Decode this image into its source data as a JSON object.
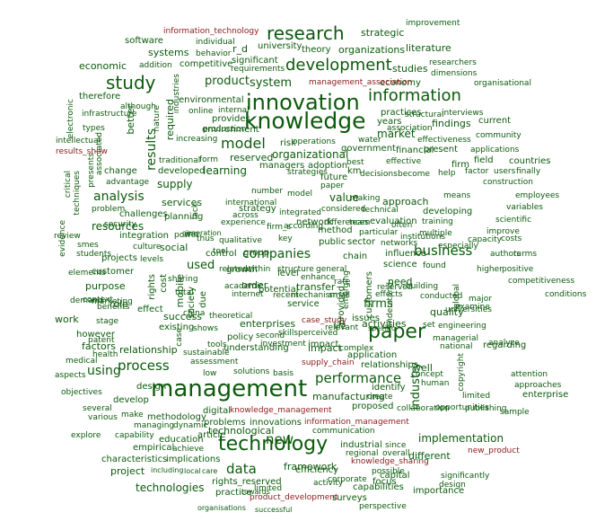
{
  "colors": {
    "common": "#0c5a0c",
    "highlight": "#8b1a1a",
    "background": "#ffffff"
  },
  "words": [
    "management",
    "knowledge",
    "innovation",
    "technology",
    "research",
    "paper",
    "development",
    "information",
    "study",
    "model",
    "process",
    "business",
    "performance",
    "data",
    "new",
    "analysis",
    "companies",
    "system",
    "product",
    "firms",
    "industry",
    "results",
    "organizations",
    "strategic",
    "literature",
    "software",
    "economic",
    "systems",
    "r_d",
    "university",
    "theory",
    "significant",
    "studies",
    "competitive",
    "requirements",
    "economy",
    "management_association",
    "organisational",
    "researchers",
    "dimensions",
    "information_technology",
    "improvement",
    "individual",
    "behavior",
    "addition",
    "association",
    "therefore",
    "environmental",
    "online",
    "internal",
    "practices",
    "structural",
    "interviews",
    "findings",
    "current",
    "provides",
    "environment",
    "years",
    "market",
    "community",
    "intellectual",
    "increasing",
    "operations",
    "water",
    "effectiveness",
    "results_show",
    "traditional",
    "form",
    "risk",
    "government",
    "financial",
    "present",
    "applications",
    "countries",
    "field",
    "firm",
    "advantage",
    "change",
    "organizational",
    "reserved",
    "managers",
    "adoption",
    "best",
    "effective",
    "factor",
    "users",
    "finally",
    "supply",
    "developed",
    "learning",
    "future",
    "km",
    "decisions",
    "become",
    "help",
    "construction",
    "using",
    "services",
    "knowledge_management",
    "information_management",
    "technological",
    "communication",
    "industrial",
    "implementation",
    "framework",
    "efficiency",
    "surveys",
    "capabilities",
    "knowledge_sharing",
    "new_product",
    "product_development",
    "rights_reserved",
    "focus",
    "capital",
    "importance",
    "project",
    "technologies",
    "practice",
    "empirical",
    "characteristics",
    "implications",
    "education",
    "article",
    "digital",
    "problems",
    "innovations",
    "methodology",
    "design",
    "enterprise",
    "attention",
    "manufacturing",
    "create",
    "case_study",
    "supply_chain",
    "value",
    "approach",
    "developing",
    "evaluation",
    "network",
    "method",
    "public",
    "sector",
    "networks",
    "impact",
    "application",
    "relationships",
    "quality",
    "activities",
    "issues",
    "need",
    "order",
    "strategy",
    "international",
    "integrated",
    "relationship",
    "success",
    "existing",
    "factors",
    "however",
    "work",
    "role",
    "effect",
    "purpose",
    "customer",
    "health",
    "resources",
    "challenges",
    "planning",
    "social",
    "control",
    "group",
    "chain",
    "science",
    "influence",
    "growth",
    "level",
    "transfer",
    "service",
    "potential",
    "enterprises",
    "policy",
    "understanding",
    "investment",
    "impact",
    "complex",
    "used",
    "projects",
    "well",
    "identify",
    "proposed",
    "collaboration",
    "various",
    "develop",
    "several",
    "objectives",
    "aspects",
    "medical",
    "explore",
    "capability",
    "managing",
    "dynamic",
    "including",
    "local",
    "care",
    "towards",
    "organisations",
    "successful",
    "regional",
    "corporate",
    "perspective",
    "possible",
    "different",
    "overall",
    "since",
    "sample",
    "approaches",
    "enhance",
    "integration",
    "generation",
    "team",
    "often",
    "training",
    "scientific",
    "improve",
    "authors",
    "terms",
    "found",
    "higher",
    "competitiveness",
    "conditions",
    "conducted",
    "major",
    "engineering",
    "managerial",
    "national",
    "regarding",
    "analyze",
    "human",
    "concept",
    "positive",
    "costs",
    "capacity",
    "employees",
    "means",
    "variables",
    "security",
    "problem",
    "benefits",
    "context",
    "stage",
    "patent",
    "marketing",
    "demand",
    "elements",
    "students",
    "levels",
    "culture",
    "smes",
    "review",
    "evidence",
    "critical",
    "techniques",
    "presents",
    "associated",
    "types",
    "although",
    "infrastructure",
    "electronic",
    "better",
    "nature",
    "required",
    "industries",
    "production",
    "specific",
    "strategies",
    "number",
    "model",
    "paper",
    "technical",
    "making",
    "considered",
    "multiple",
    "especially",
    "universities",
    "examine",
    "effects",
    "small",
    "recent",
    "internet",
    "mechanism",
    "second",
    "skills",
    "perceived",
    "relevant",
    "life",
    "shows",
    "sustainable",
    "low",
    "solutions",
    "basis",
    "assessment",
    "tools",
    "academic",
    "mobile",
    "society",
    "due",
    "rights",
    "cost",
    "sharing",
    "emerging",
    "related",
    "within",
    "structure",
    "general",
    "particular",
    "rate",
    "customers",
    "understand",
    "institutions",
    "building",
    "global",
    "copyright",
    "limited",
    "publishing",
    "opportunities",
    "design",
    "significantly",
    "achieve",
    "make",
    "activity",
    "experience",
    "qualitative",
    "power",
    "thus",
    "according",
    "differences",
    "theoretical",
    "china",
    "tool",
    "inc",
    "across",
    "provided",
    "firm_s",
    "reserved",
    "set",
    "case",
    "total",
    "key",
    "limited",
    "lack",
    "managing",
    "area",
    "view",
    "new",
    "based"
  ]
}
